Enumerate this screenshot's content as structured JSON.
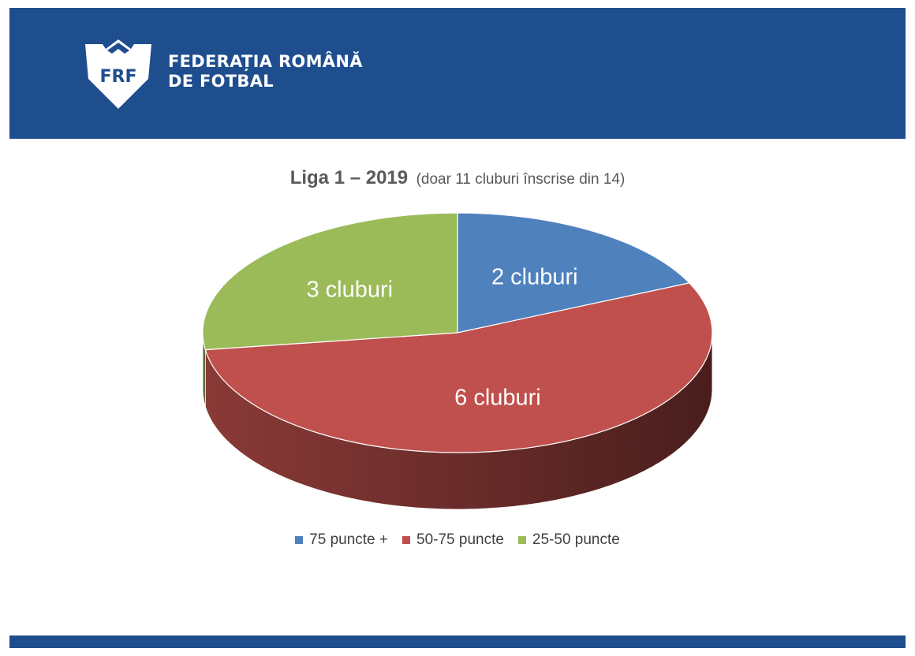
{
  "header": {
    "logo_text": "FRF",
    "org_name_line1": "FEDERAȚIA ROMÂNĂ",
    "org_name_line2": "DE FOTBAL",
    "background_color": "#1f4e8f"
  },
  "chart_data": {
    "type": "pie",
    "style": "3d",
    "title": "Liga 1 – 2019",
    "subtitle": "(doar 11 cluburi înscrise din 14)",
    "categories": [
      "75 puncte +",
      "50-75 puncte",
      "25-50 puncte"
    ],
    "values": [
      2,
      6,
      3
    ],
    "data_labels": [
      "2 cluburi",
      "6 cluburi",
      "3 cluburi"
    ],
    "colors": [
      "#4f81bd",
      "#c0504d",
      "#9bbb59"
    ],
    "legend_position": "bottom"
  }
}
